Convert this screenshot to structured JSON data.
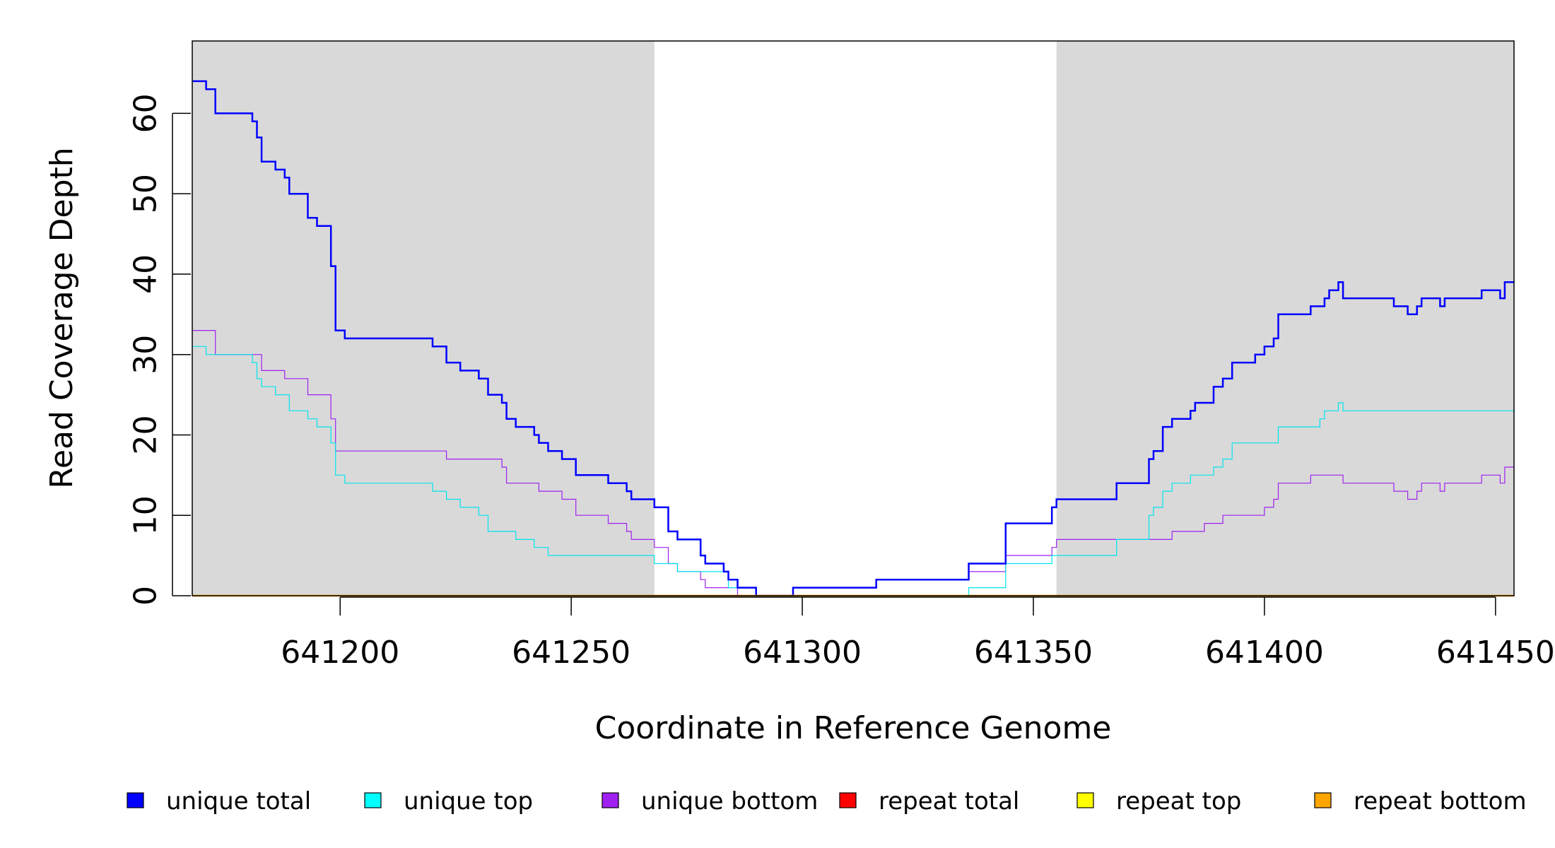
{
  "chart_data": {
    "type": "line",
    "step": true,
    "xlabel": "Coordinate in Reference Genome",
    "ylabel": "Read Coverage Depth",
    "xlim": [
      641168,
      641454
    ],
    "ylim": [
      0,
      69
    ],
    "x_ticks": [
      641200,
      641250,
      641300,
      641350,
      641400,
      641450
    ],
    "x_tick_labels": [
      "641200",
      "641250",
      "641300",
      "641350",
      "641400",
      "641450"
    ],
    "y_ticks": [
      0,
      10,
      20,
      30,
      40,
      50,
      60
    ],
    "y_tick_labels": [
      "0",
      "10",
      "20",
      "30",
      "40",
      "50",
      "60"
    ],
    "shaded_regions": [
      [
        641168,
        641268
      ],
      [
        641355,
        641454
      ]
    ],
    "shade_color": "#d9d9d9",
    "series": [
      {
        "name": "unique total",
        "color": "#0000ff",
        "linewidth": 2.5,
        "points": [
          [
            641168,
            64
          ],
          [
            641171,
            63
          ],
          [
            641173,
            60
          ],
          [
            641181,
            59
          ],
          [
            641182,
            57
          ],
          [
            641183,
            54
          ],
          [
            641186,
            53
          ],
          [
            641188,
            52
          ],
          [
            641189,
            50
          ],
          [
            641193,
            47
          ],
          [
            641195,
            46
          ],
          [
            641198,
            41
          ],
          [
            641199,
            33
          ],
          [
            641201,
            32
          ],
          [
            641220,
            31
          ],
          [
            641223,
            29
          ],
          [
            641226,
            28
          ],
          [
            641230,
            27
          ],
          [
            641232,
            25
          ],
          [
            641235,
            24
          ],
          [
            641236,
            22
          ],
          [
            641238,
            21
          ],
          [
            641242,
            20
          ],
          [
            641243,
            19
          ],
          [
            641245,
            18
          ],
          [
            641248,
            17
          ],
          [
            641251,
            15
          ],
          [
            641258,
            14
          ],
          [
            641262,
            13
          ],
          [
            641263,
            12
          ],
          [
            641268,
            11
          ],
          [
            641271,
            8
          ],
          [
            641273,
            7
          ],
          [
            641278,
            5
          ],
          [
            641279,
            4
          ],
          [
            641283,
            3
          ],
          [
            641284,
            2
          ],
          [
            641286,
            1
          ],
          [
            641290,
            0
          ],
          [
            641298,
            1
          ],
          [
            641316,
            2
          ],
          [
            641336,
            4
          ],
          [
            641344,
            9
          ],
          [
            641354,
            11
          ],
          [
            641355,
            12
          ],
          [
            641368,
            14
          ],
          [
            641375,
            17
          ],
          [
            641376,
            18
          ],
          [
            641378,
            21
          ],
          [
            641380,
            22
          ],
          [
            641384,
            23
          ],
          [
            641385,
            24
          ],
          [
            641389,
            26
          ],
          [
            641391,
            27
          ],
          [
            641393,
            29
          ],
          [
            641398,
            30
          ],
          [
            641400,
            31
          ],
          [
            641402,
            32
          ],
          [
            641403,
            35
          ],
          [
            641410,
            36
          ],
          [
            641413,
            37
          ],
          [
            641414,
            38
          ],
          [
            641416,
            39
          ],
          [
            641417,
            37
          ],
          [
            641428,
            36
          ],
          [
            641431,
            35
          ],
          [
            641433,
            36
          ],
          [
            641434,
            37
          ],
          [
            641438,
            36
          ],
          [
            641439,
            37
          ],
          [
            641447,
            38
          ],
          [
            641451,
            37
          ],
          [
            641452,
            39
          ],
          [
            641454,
            39
          ]
        ]
      },
      {
        "name": "unique top",
        "color": "#00e5ee",
        "linewidth": 1.2,
        "points": [
          [
            641168,
            31
          ],
          [
            641171,
            30
          ],
          [
            641181,
            29
          ],
          [
            641182,
            27
          ],
          [
            641183,
            26
          ],
          [
            641186,
            25
          ],
          [
            641189,
            23
          ],
          [
            641193,
            22
          ],
          [
            641195,
            21
          ],
          [
            641198,
            19
          ],
          [
            641199,
            15
          ],
          [
            641201,
            14
          ],
          [
            641220,
            13
          ],
          [
            641223,
            12
          ],
          [
            641226,
            11
          ],
          [
            641230,
            10
          ],
          [
            641232,
            8
          ],
          [
            641238,
            7
          ],
          [
            641242,
            6
          ],
          [
            641245,
            5
          ],
          [
            641268,
            4
          ],
          [
            641273,
            3
          ],
          [
            641284,
            1
          ],
          [
            641290,
            0
          ],
          [
            641336,
            1
          ],
          [
            641344,
            4
          ],
          [
            641354,
            5
          ],
          [
            641368,
            7
          ],
          [
            641375,
            10
          ],
          [
            641376,
            11
          ],
          [
            641378,
            13
          ],
          [
            641380,
            14
          ],
          [
            641384,
            15
          ],
          [
            641389,
            16
          ],
          [
            641391,
            17
          ],
          [
            641393,
            19
          ],
          [
            641403,
            21
          ],
          [
            641412,
            22
          ],
          [
            641413,
            23
          ],
          [
            641416,
            24
          ],
          [
            641417,
            23
          ],
          [
            641454,
            23
          ]
        ]
      },
      {
        "name": "unique bottom",
        "color": "#a020f0",
        "linewidth": 1.2,
        "points": [
          [
            641168,
            33
          ],
          [
            641173,
            30
          ],
          [
            641183,
            28
          ],
          [
            641188,
            27
          ],
          [
            641193,
            25
          ],
          [
            641198,
            22
          ],
          [
            641199,
            18
          ],
          [
            641223,
            17
          ],
          [
            641235,
            16
          ],
          [
            641236,
            14
          ],
          [
            641243,
            13
          ],
          [
            641248,
            12
          ],
          [
            641251,
            10
          ],
          [
            641258,
            9
          ],
          [
            641262,
            8
          ],
          [
            641263,
            7
          ],
          [
            641268,
            6
          ],
          [
            641271,
            4
          ],
          [
            641273,
            3
          ],
          [
            641278,
            2
          ],
          [
            641279,
            1
          ],
          [
            641286,
            0
          ],
          [
            641298,
            1
          ],
          [
            641316,
            2
          ],
          [
            641336,
            3
          ],
          [
            641344,
            5
          ],
          [
            641354,
            6
          ],
          [
            641355,
            7
          ],
          [
            641380,
            8
          ],
          [
            641387,
            9
          ],
          [
            641391,
            10
          ],
          [
            641400,
            11
          ],
          [
            641402,
            12
          ],
          [
            641403,
            14
          ],
          [
            641410,
            15
          ],
          [
            641417,
            14
          ],
          [
            641428,
            13
          ],
          [
            641431,
            12
          ],
          [
            641433,
            13
          ],
          [
            641434,
            14
          ],
          [
            641438,
            13
          ],
          [
            641439,
            14
          ],
          [
            641447,
            15
          ],
          [
            641451,
            14
          ],
          [
            641452,
            16
          ],
          [
            641454,
            16
          ]
        ]
      },
      {
        "name": "repeat total",
        "color": "#ff0000",
        "linewidth": 1.5,
        "points": [
          [
            641168,
            0
          ],
          [
            641454,
            0
          ]
        ]
      },
      {
        "name": "repeat top",
        "color": "#ffff00",
        "linewidth": 1.5,
        "points": [
          [
            641168,
            0
          ],
          [
            641454,
            0
          ]
        ]
      },
      {
        "name": "repeat bottom",
        "color": "#ffa500",
        "linewidth": 2.5,
        "points": [
          [
            641168,
            0
          ],
          [
            641454,
            0
          ]
        ]
      }
    ],
    "legend": {
      "placement": "bottom",
      "items": [
        {
          "label": "unique total",
          "color": "#0000ff"
        },
        {
          "label": "unique top",
          "color": "#00ffff"
        },
        {
          "label": "unique bottom",
          "color": "#a020f0"
        },
        {
          "label": "repeat total",
          "color": "#ff0000"
        },
        {
          "label": "repeat top",
          "color": "#ffff00"
        },
        {
          "label": "repeat bottom",
          "color": "#ffa500"
        }
      ]
    }
  }
}
